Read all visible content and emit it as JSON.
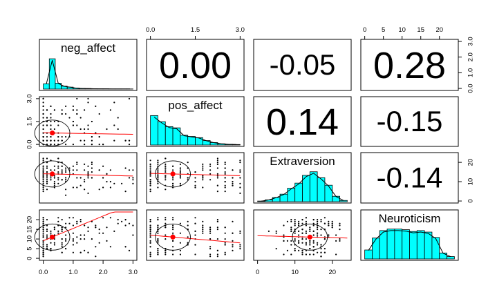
{
  "chart_data": {
    "type": "scatter-matrix",
    "variables": [
      "neg_affect",
      "pos_affect",
      "Extraversion",
      "Neuroticism"
    ],
    "ranges": [
      [
        0,
        3
      ],
      [
        0,
        3
      ],
      [
        0,
        24
      ],
      [
        0,
        24
      ]
    ],
    "ticks": [
      [
        "0.0",
        "1.0",
        "2.0",
        "3.0"
      ],
      [
        "0.0",
        "1.5",
        "3.0"
      ],
      [
        "0",
        "10",
        "20"
      ],
      [
        "0",
        "5",
        "10",
        "15",
        "20"
      ]
    ],
    "tick_values": [
      [
        0,
        1,
        2,
        3
      ],
      [
        0,
        1.5,
        3
      ],
      [
        0,
        10,
        20
      ],
      [
        0,
        5,
        10,
        15,
        20
      ]
    ],
    "histogram_fill": "#00ffff",
    "smooth_color": "#ff0000",
    "correlations": [
      {
        "row": 0,
        "col": 1,
        "label": "0.00"
      },
      {
        "row": 0,
        "col": 2,
        "label": "-0.05"
      },
      {
        "row": 0,
        "col": 3,
        "label": "0.28"
      },
      {
        "row": 1,
        "col": 2,
        "label": "0.14"
      },
      {
        "row": 1,
        "col": 3,
        "label": "-0.15"
      },
      {
        "row": 2,
        "col": 3,
        "label": "-0.14"
      }
    ],
    "histograms": [
      {
        "var": "neg_affect",
        "breaks": [
          0,
          0.2,
          0.4,
          0.6,
          0.8,
          1.0,
          1.2,
          1.4,
          1.6,
          1.8,
          2.0,
          2.2,
          2.4,
          2.6,
          2.8,
          3.0
        ],
        "counts": [
          40,
          230,
          45,
          22,
          15,
          8,
          5,
          4,
          3,
          2,
          2,
          1,
          1,
          1,
          1
        ]
      },
      {
        "var": "pos_affect",
        "breaks": [
          0,
          0.25,
          0.5,
          0.75,
          1.0,
          1.25,
          1.5,
          1.75,
          2.0,
          2.25,
          2.5,
          2.75,
          3.0
        ],
        "counts": [
          120,
          95,
          75,
          70,
          40,
          35,
          30,
          18,
          10,
          5,
          3,
          2
        ]
      },
      {
        "var": "Extraversion",
        "breaks": [
          0,
          2,
          4,
          6,
          8,
          10,
          12,
          14,
          16,
          18,
          20,
          22,
          24
        ],
        "counts": [
          2,
          6,
          14,
          25,
          45,
          62,
          88,
          100,
          80,
          55,
          18,
          4
        ]
      },
      {
        "var": "Neuroticism",
        "breaks": [
          0,
          2,
          4,
          6,
          8,
          10,
          12,
          14,
          16,
          18,
          20,
          22,
          24
        ],
        "counts": [
          30,
          70,
          95,
          100,
          100,
          98,
          92,
          95,
          90,
          72,
          20,
          8
        ]
      }
    ],
    "scatter_means": [
      {
        "row": 1,
        "col": 0,
        "x": 0.3,
        "y": 0.75
      },
      {
        "row": 2,
        "col": 0,
        "x": 0.3,
        "y": 14
      },
      {
        "row": 3,
        "col": 0,
        "x": 0.3,
        "y": 11
      },
      {
        "row": 2,
        "col": 1,
        "x": 0.75,
        "y": 14
      },
      {
        "row": 3,
        "col": 1,
        "x": 0.75,
        "y": 11
      },
      {
        "row": 3,
        "col": 2,
        "x": 14,
        "y": 11
      }
    ]
  }
}
